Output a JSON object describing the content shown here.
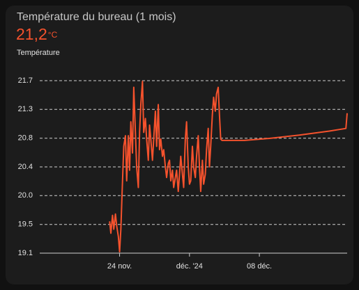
{
  "chart_data": {
    "type": "line",
    "title": "Température du bureau (1 mois)",
    "state": "21,2",
    "unit": "°C",
    "x": [
      "2024-11-23T00:00",
      "2024-11-23T03:00",
      "2024-11-23T07:00",
      "2024-11-23T10:00",
      "2024-11-23T14:00",
      "2024-11-23T17:00",
      "2024-11-23T21:00",
      "2024-11-24T00:00",
      "2024-11-24T03:00",
      "2024-11-24T07:00",
      "2024-11-24T10:00",
      "2024-11-24T14:00",
      "2024-11-24T17:00",
      "2024-11-24T21:00",
      "2024-11-25T00:00",
      "2024-11-25T03:00",
      "2024-11-25T07:00",
      "2024-11-25T10:00",
      "2024-11-25T14:00",
      "2024-11-25T17:00",
      "2024-11-25T21:00",
      "2024-11-26T00:00",
      "2024-11-26T03:00",
      "2024-11-26T07:00",
      "2024-11-26T10:00",
      "2024-11-26T14:00",
      "2024-11-26T17:00",
      "2024-11-26T21:00",
      "2024-11-27T00:00",
      "2024-11-27T03:00",
      "2024-11-27T07:00",
      "2024-11-27T10:00",
      "2024-11-27T14:00",
      "2024-11-27T17:00",
      "2024-11-27T21:00",
      "2024-11-28T00:00",
      "2024-11-28T03:00",
      "2024-11-28T07:00",
      "2024-11-28T10:00",
      "2024-11-28T14:00",
      "2024-11-28T17:00",
      "2024-11-28T21:00",
      "2024-11-29T00:00",
      "2024-11-29T03:00",
      "2024-11-29T07:00",
      "2024-11-29T10:00",
      "2024-11-29T14:00",
      "2024-11-29T17:00",
      "2024-11-29T21:00",
      "2024-11-30T00:00",
      "2024-11-30T03:00",
      "2024-11-30T07:00",
      "2024-11-30T10:00",
      "2024-11-30T14:00",
      "2024-11-30T17:00",
      "2024-11-30T21:00",
      "2024-12-01T00:00",
      "2024-12-01T03:00",
      "2024-12-01T07:00",
      "2024-12-01T10:00",
      "2024-12-01T14:00",
      "2024-12-01T17:00",
      "2024-12-01T21:00",
      "2024-12-02T00:00",
      "2024-12-02T03:00",
      "2024-12-02T07:00",
      "2024-12-02T10:00",
      "2024-12-02T14:00",
      "2024-12-02T17:00",
      "2024-12-02T21:00",
      "2024-12-03T00:00",
      "2024-12-03T03:00",
      "2024-12-03T07:00",
      "2024-12-03T10:00",
      "2024-12-03T14:00",
      "2024-12-03T17:00",
      "2024-12-03T21:00",
      "2024-12-04T00:00",
      "2024-12-04T03:00",
      "2024-12-04T06:00",
      "2024-12-06T12:00",
      "2024-12-09T00:00",
      "2024-12-12T00:00",
      "2024-12-15T00:00",
      "2024-12-16T16:00",
      "2024-12-16T19:00"
    ],
    "series": [
      {
        "name": "Température",
        "color": "#f5522d",
        "values": [
          19.58,
          19.4,
          19.67,
          19.46,
          19.69,
          19.51,
          19.35,
          19.12,
          19.46,
          20.19,
          20.71,
          20.87,
          20.19,
          20.87,
          20.35,
          21.08,
          20.61,
          21.6,
          20.92,
          20.4,
          20.09,
          20.92,
          21.34,
          21.69,
          20.92,
          21.13,
          20.82,
          20.5,
          21.03,
          20.82,
          20.5,
          20.82,
          21.24,
          20.71,
          21.34,
          20.66,
          20.82,
          20.56,
          20.66,
          20.4,
          20.24,
          20.45,
          20.5,
          20.19,
          20.35,
          20.09,
          20.24,
          20.35,
          20.03,
          20.29,
          20.56,
          20.29,
          20.09,
          20.82,
          21.08,
          20.4,
          20.14,
          20.19,
          20.71,
          20.4,
          20.24,
          20.56,
          20.87,
          20.4,
          20.03,
          20.5,
          20.14,
          20.29,
          20.66,
          20.98,
          20.4,
          20.71,
          21.19,
          21.45,
          21.24,
          21.5,
          21.6,
          21.19,
          20.82,
          20.8,
          20.8,
          20.83,
          20.88,
          20.94,
          20.98,
          21.21
        ]
      }
    ],
    "xlim": [
      "2024-11-16T00:00",
      "2024-12-16T19:00"
    ],
    "xticks": [
      {
        "value": "2024-11-24T00:00",
        "label": "24 nov."
      },
      {
        "value": "2024-12-01T00:00",
        "label": "déc. '24"
      },
      {
        "value": "2024-12-08T00:00",
        "label": "08 déc."
      }
    ],
    "ylim": [
      19.1,
      21.7
    ],
    "yticks": [
      19.1,
      {
        "value": 19.533,
        "label": "19.5"
      },
      {
        "value": 19.967,
        "label": "20.0"
      },
      20.4,
      {
        "value": 20.833,
        "label": "20.8"
      },
      {
        "value": 21.267,
        "label": "21.3"
      },
      21.7
    ],
    "grid": true
  }
}
